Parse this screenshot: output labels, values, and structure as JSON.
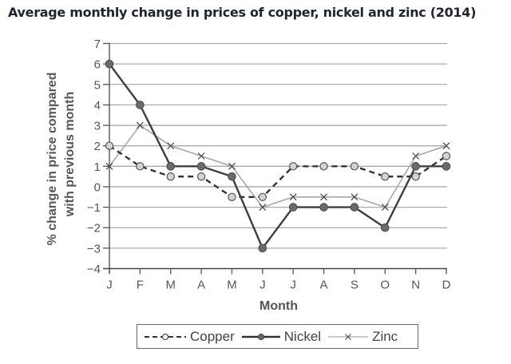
{
  "chart_data": {
    "type": "line",
    "title": "Average monthly change in prices of copper, nickel and zinc (2014)",
    "xlabel": "Month",
    "ylabel": "% change in price compared with previous month",
    "ylabel_lines": [
      "% change in price compared",
      "with previous month"
    ],
    "categories": [
      "J",
      "F",
      "M",
      "A",
      "M",
      "J",
      "J",
      "A",
      "S",
      "O",
      "N",
      "D"
    ],
    "ylim": [
      -4,
      7
    ],
    "yticks": [
      7,
      6,
      5,
      4,
      3,
      2,
      1,
      0,
      -1,
      -2,
      -3,
      -4
    ],
    "ytick_labels": [
      "7",
      "6",
      "5",
      "4",
      "3",
      "2",
      "1",
      "0",
      "−1",
      "−2",
      "−3",
      "−4"
    ],
    "grid": true,
    "legend_position": "bottom",
    "series": [
      {
        "name": "Copper",
        "style": "dashed",
        "marker": "open-circle",
        "color": "#333333",
        "values": [
          2,
          1,
          0.5,
          0.5,
          -0.5,
          -0.5,
          1,
          1,
          1,
          0.5,
          0.5,
          1.5
        ]
      },
      {
        "name": "Nickel",
        "style": "solid",
        "marker": "filled-circle",
        "color": "#444444",
        "values": [
          6,
          4,
          1,
          1,
          0.5,
          -3,
          -1,
          -1,
          -1,
          -2,
          1,
          1
        ]
      },
      {
        "name": "Zinc",
        "style": "solid-thin",
        "marker": "x",
        "color": "#999999",
        "values": [
          1,
          3,
          2,
          1.5,
          1,
          -1,
          -0.5,
          -0.5,
          -0.5,
          -1,
          1.5,
          2
        ]
      }
    ]
  },
  "legend": {
    "copper": "Copper",
    "nickel": "Nickel",
    "zinc": "Zinc"
  }
}
